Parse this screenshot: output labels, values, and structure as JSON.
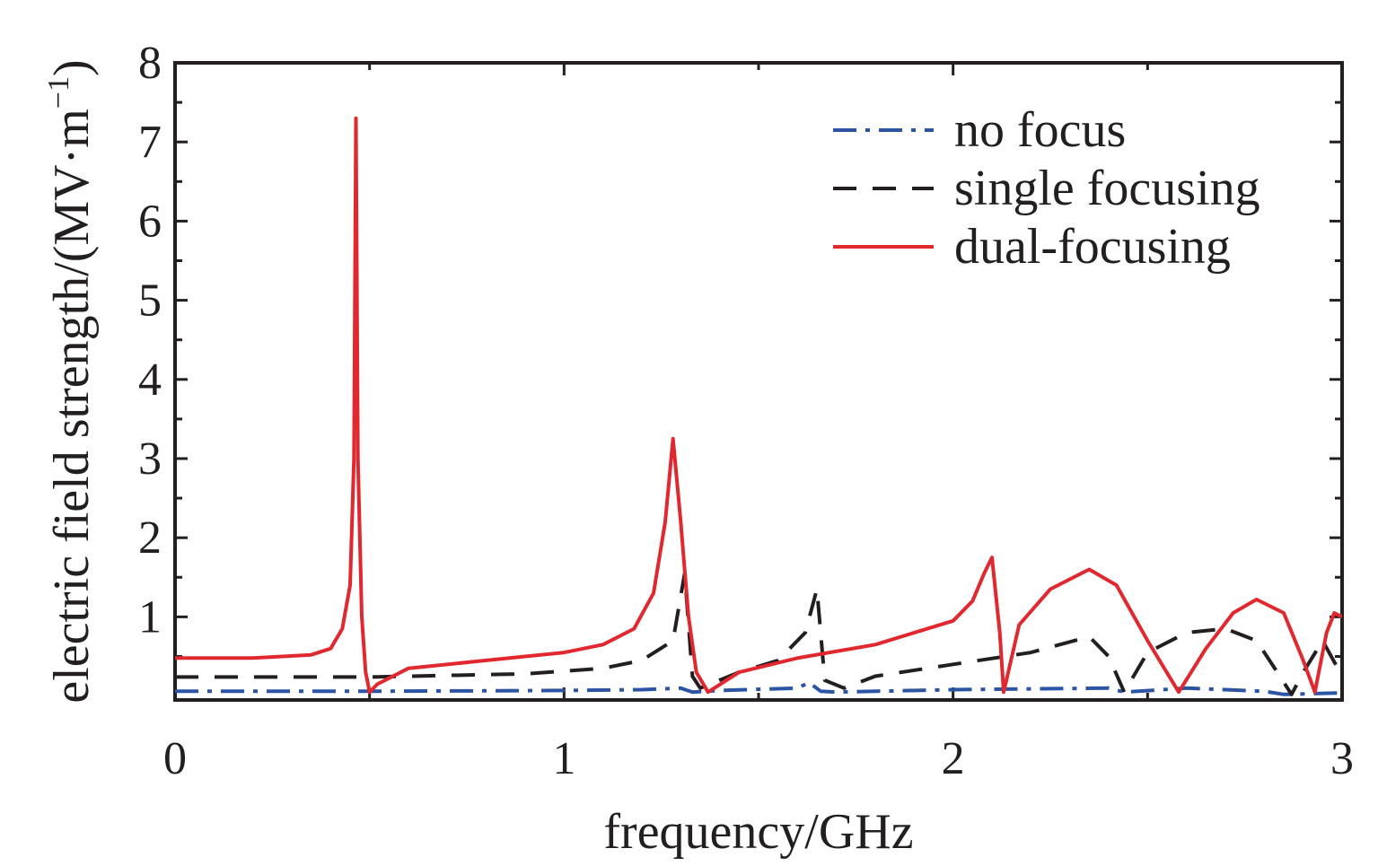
{
  "chart_data": {
    "type": "line",
    "title": "",
    "xlabel": "frequency/GHz",
    "ylabel": "electric field strength/(MV·m",
    "ylabel_superscript": "−1",
    "ylabel_close": ")",
    "xlim": [
      0,
      3
    ],
    "ylim": [
      -0.05,
      8
    ],
    "x_ticks": [
      0,
      1,
      2,
      3
    ],
    "x_tick_labels": [
      "0",
      "1",
      "2",
      "3"
    ],
    "y_ticks": [
      1,
      2,
      3,
      4,
      5,
      6,
      7,
      8
    ],
    "y_tick_labels": [
      "1",
      "2",
      "3",
      "4",
      "5",
      "6",
      "7",
      "8"
    ],
    "grid": false,
    "legend_position": "top-right",
    "series": [
      {
        "name": "no focus",
        "color": "#2b54a5",
        "dash": "dash-dot",
        "points": [
          [
            0,
            0.06
          ],
          [
            0.5,
            0.06
          ],
          [
            1.0,
            0.07
          ],
          [
            1.2,
            0.08
          ],
          [
            1.3,
            0.1
          ],
          [
            1.33,
            0.05
          ],
          [
            1.4,
            0.07
          ],
          [
            1.6,
            0.1
          ],
          [
            1.63,
            0.17
          ],
          [
            1.66,
            0.06
          ],
          [
            1.7,
            0.05
          ],
          [
            2.0,
            0.08
          ],
          [
            2.4,
            0.1
          ],
          [
            2.44,
            0.05
          ],
          [
            2.6,
            0.1
          ],
          [
            2.8,
            0.06
          ],
          [
            2.85,
            0.02
          ],
          [
            3.0,
            0.04
          ]
        ]
      },
      {
        "name": "single focusing",
        "color": "#231f20",
        "dash": "dashed",
        "points": [
          [
            0,
            0.24
          ],
          [
            0.5,
            0.24
          ],
          [
            0.9,
            0.28
          ],
          [
            1.1,
            0.35
          ],
          [
            1.2,
            0.45
          ],
          [
            1.28,
            0.7
          ],
          [
            1.31,
            1.55
          ],
          [
            1.33,
            0.25
          ],
          [
            1.35,
            0.1
          ],
          [
            1.45,
            0.3
          ],
          [
            1.55,
            0.45
          ],
          [
            1.62,
            0.8
          ],
          [
            1.65,
            1.35
          ],
          [
            1.67,
            0.2
          ],
          [
            1.72,
            0.1
          ],
          [
            1.8,
            0.25
          ],
          [
            2.0,
            0.4
          ],
          [
            2.2,
            0.55
          ],
          [
            2.35,
            0.75
          ],
          [
            2.4,
            0.5
          ],
          [
            2.44,
            0.05
          ],
          [
            2.5,
            0.55
          ],
          [
            2.6,
            0.8
          ],
          [
            2.7,
            0.85
          ],
          [
            2.78,
            0.7
          ],
          [
            2.84,
            0.25
          ],
          [
            2.87,
            0.02
          ],
          [
            2.9,
            0.3
          ],
          [
            2.95,
            0.7
          ],
          [
            3.0,
            0.25
          ]
        ]
      },
      {
        "name": "dual-focusing",
        "color": "#e0282e",
        "dash": "solid",
        "points": [
          [
            0,
            0.48
          ],
          [
            0.2,
            0.48
          ],
          [
            0.35,
            0.52
          ],
          [
            0.4,
            0.6
          ],
          [
            0.43,
            0.85
          ],
          [
            0.45,
            1.4
          ],
          [
            0.46,
            3.0
          ],
          [
            0.465,
            7.3
          ],
          [
            0.47,
            3.0
          ],
          [
            0.48,
            1.0
          ],
          [
            0.49,
            0.3
          ],
          [
            0.5,
            0.05
          ],
          [
            0.52,
            0.15
          ],
          [
            0.6,
            0.35
          ],
          [
            0.8,
            0.45
          ],
          [
            1.0,
            0.55
          ],
          [
            1.1,
            0.65
          ],
          [
            1.18,
            0.85
          ],
          [
            1.23,
            1.3
          ],
          [
            1.26,
            2.2
          ],
          [
            1.28,
            3.25
          ],
          [
            1.3,
            2.2
          ],
          [
            1.32,
            1.0
          ],
          [
            1.34,
            0.3
          ],
          [
            1.37,
            0.05
          ],
          [
            1.45,
            0.3
          ],
          [
            1.6,
            0.48
          ],
          [
            1.8,
            0.65
          ],
          [
            2.0,
            0.95
          ],
          [
            2.05,
            1.2
          ],
          [
            2.08,
            1.55
          ],
          [
            2.1,
            1.75
          ],
          [
            2.12,
            0.8
          ],
          [
            2.13,
            0.05
          ],
          [
            2.17,
            0.9
          ],
          [
            2.25,
            1.35
          ],
          [
            2.35,
            1.6
          ],
          [
            2.42,
            1.4
          ],
          [
            2.5,
            0.7
          ],
          [
            2.58,
            0.05
          ],
          [
            2.65,
            0.6
          ],
          [
            2.72,
            1.05
          ],
          [
            2.78,
            1.22
          ],
          [
            2.85,
            1.05
          ],
          [
            2.9,
            0.45
          ],
          [
            2.93,
            0.05
          ],
          [
            2.96,
            0.8
          ],
          [
            2.98,
            1.05
          ],
          [
            3.0,
            1.0
          ]
        ]
      }
    ]
  }
}
